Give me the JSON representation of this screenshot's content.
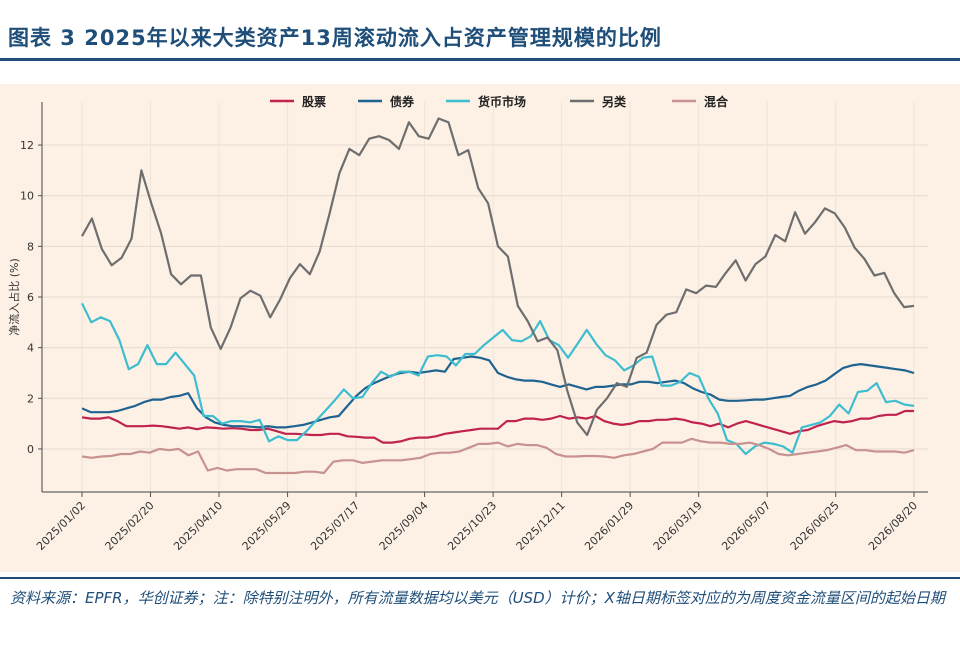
{
  "title": "图表 3 2025年以来大类资产13周滚动流入占资产管理规模的比例",
  "source": "资料来源：EPFR，华创证券；注：除特别注明外，所有流量数据均以美元（USD）计价；X轴日期标签对应的为周度资金流量区间的起始日期",
  "chart_data": {
    "type": "line",
    "ylabel": "净流入占比 (%)",
    "ylim": [
      -1.7,
      13.7
    ],
    "yticks": [
      0,
      2,
      4,
      6,
      8,
      10,
      12
    ],
    "xticks": [
      "2025/01/02",
      "2025/02/20",
      "2025/04/10",
      "2025/05/29",
      "2025/07/17",
      "2025/09/04",
      "2025/10/23",
      "2025/12/11",
      "2026/01/29",
      "2026/03/19",
      "2026/05/07",
      "2026/06/25",
      "2026/08/20"
    ],
    "x_start": "2025/01/02",
    "x_end": "2026/08/20",
    "grid": true,
    "legend": "top-center",
    "series": [
      {
        "name": "股票",
        "color": "#c0234d",
        "values": [
          1.25,
          1.2,
          1.2,
          1.25,
          1.1,
          0.9,
          0.9,
          0.9,
          0.92,
          0.9,
          0.85,
          0.8,
          0.85,
          0.78,
          0.85,
          0.83,
          0.8,
          0.82,
          0.8,
          0.75,
          0.75,
          0.8,
          0.7,
          0.6,
          0.6,
          0.58,
          0.55,
          0.55,
          0.6,
          0.6,
          0.5,
          0.48,
          0.45,
          0.45,
          0.25,
          0.25,
          0.3,
          0.4,
          0.45,
          0.45,
          0.5,
          0.6,
          0.65,
          0.7,
          0.75,
          0.8,
          0.8,
          0.8,
          1.1,
          1.1,
          1.2,
          1.2,
          1.15,
          1.2,
          1.3,
          1.2,
          1.25,
          1.2,
          1.3,
          1.1,
          1.0,
          0.95,
          1.0,
          1.1,
          1.1,
          1.15,
          1.15,
          1.2,
          1.15,
          1.05,
          1.0,
          0.9,
          1.0,
          0.85,
          1.0,
          1.1,
          1.0,
          0.9,
          0.8,
          0.7,
          0.6,
          0.7,
          0.75,
          0.9,
          1.0,
          1.1,
          1.05,
          1.1,
          1.2,
          1.2,
          1.3,
          1.35,
          1.35,
          1.5,
          1.5
        ]
      },
      {
        "name": "债券",
        "color": "#1f6391",
        "values": [
          1.6,
          1.45,
          1.45,
          1.45,
          1.5,
          1.6,
          1.7,
          1.85,
          1.95,
          1.95,
          2.05,
          2.1,
          2.2,
          1.6,
          1.25,
          1.05,
          0.95,
          0.9,
          0.9,
          0.88,
          0.85,
          0.9,
          0.85,
          0.85,
          0.9,
          0.95,
          1.05,
          1.15,
          1.25,
          1.3,
          1.7,
          2.1,
          2.4,
          2.6,
          2.75,
          2.9,
          3.0,
          3.05,
          3.0,
          3.05,
          3.1,
          3.05,
          3.55,
          3.6,
          3.65,
          3.6,
          3.5,
          3.0,
          2.85,
          2.75,
          2.7,
          2.7,
          2.65,
          2.55,
          2.45,
          2.55,
          2.45,
          2.35,
          2.45,
          2.45,
          2.5,
          2.55,
          2.55,
          2.65,
          2.65,
          2.6,
          2.65,
          2.7,
          2.6,
          2.4,
          2.25,
          2.15,
          1.95,
          1.9,
          1.9,
          1.92,
          1.95,
          1.95,
          2.0,
          2.05,
          2.1,
          2.3,
          2.45,
          2.55,
          2.7,
          2.95,
          3.2,
          3.3,
          3.35,
          3.3,
          3.25,
          3.2,
          3.15,
          3.1,
          3.0
        ]
      },
      {
        "name": "货币市场",
        "color": "#3dbdd0",
        "values": [
          5.75,
          5.0,
          5.2,
          5.05,
          4.3,
          3.15,
          3.35,
          4.1,
          3.35,
          3.35,
          3.8,
          3.35,
          2.9,
          1.3,
          1.3,
          1.0,
          1.1,
          1.1,
          1.05,
          1.15,
          0.3,
          0.5,
          0.35,
          0.35,
          0.7,
          1.1,
          1.5,
          1.9,
          2.35,
          2.0,
          2.05,
          2.6,
          3.05,
          2.85,
          3.05,
          3.05,
          2.9,
          3.65,
          3.7,
          3.65,
          3.3,
          3.75,
          3.75,
          4.1,
          4.4,
          4.7,
          4.3,
          4.25,
          4.45,
          5.05,
          4.3,
          4.1,
          3.6,
          4.15,
          4.7,
          4.15,
          3.7,
          3.5,
          3.1,
          3.3,
          3.6,
          3.65,
          2.5,
          2.5,
          2.65,
          3.0,
          2.85,
          2.0,
          1.4,
          0.35,
          0.2,
          -0.2,
          0.1,
          0.25,
          0.2,
          0.1,
          -0.15,
          0.85,
          0.95,
          1.05,
          1.3,
          1.75,
          1.4,
          2.25,
          2.3,
          2.6,
          1.85,
          1.9,
          1.75,
          1.7
        ]
      },
      {
        "name": "另类",
        "color": "#6e6e6e",
        "values": [
          8.4,
          9.1,
          7.9,
          7.25,
          7.55,
          8.3,
          11.0,
          9.7,
          8.5,
          6.9,
          6.5,
          6.85,
          6.85,
          4.8,
          3.95,
          4.8,
          5.95,
          6.25,
          6.05,
          5.2,
          5.9,
          6.75,
          7.3,
          6.9,
          7.8,
          9.3,
          10.9,
          11.85,
          11.6,
          12.25,
          12.35,
          12.2,
          11.85,
          12.9,
          12.35,
          12.25,
          13.05,
          12.9,
          11.6,
          11.8,
          10.3,
          9.7,
          8.0,
          7.6,
          5.65,
          5.05,
          4.25,
          4.4,
          3.9,
          2.3,
          1.05,
          0.55,
          1.55,
          2.0,
          2.6,
          2.45,
          3.6,
          3.8,
          4.9,
          5.3,
          5.4,
          6.3,
          6.15,
          6.45,
          6.4,
          6.95,
          7.45,
          6.65,
          7.3,
          7.6,
          8.45,
          8.2,
          9.35,
          8.5,
          8.95,
          9.5,
          9.3,
          8.75,
          7.95,
          7.5,
          6.85,
          6.95,
          6.15,
          5.6,
          5.65
        ]
      },
      {
        "name": "混合",
        "color": "#c8928e",
        "values": [
          -0.3,
          -0.35,
          -0.3,
          -0.28,
          -0.2,
          -0.2,
          -0.1,
          -0.15,
          0.0,
          -0.05,
          0.0,
          -0.25,
          -0.1,
          -0.85,
          -0.75,
          -0.85,
          -0.8,
          -0.8,
          -0.8,
          -0.95,
          -0.95,
          -0.95,
          -0.95,
          -0.9,
          -0.9,
          -0.95,
          -0.5,
          -0.45,
          -0.45,
          -0.55,
          -0.5,
          -0.45,
          -0.45,
          -0.45,
          -0.4,
          -0.35,
          -0.2,
          -0.15,
          -0.15,
          -0.1,
          0.05,
          0.2,
          0.2,
          0.25,
          0.1,
          0.2,
          0.15,
          0.15,
          0.05,
          -0.2,
          -0.3,
          -0.3,
          -0.28,
          -0.28,
          -0.3,
          -0.35,
          -0.25,
          -0.2,
          -0.1,
          0.0,
          0.25,
          0.25,
          0.25,
          0.4,
          0.3,
          0.25,
          0.25,
          0.2,
          0.2,
          0.25,
          0.15,
          0.0,
          -0.2,
          -0.25,
          -0.2,
          -0.15,
          -0.1,
          -0.05,
          0.05,
          0.15,
          -0.05,
          -0.05,
          -0.1,
          -0.1,
          -0.1,
          -0.15,
          -0.05
        ]
      }
    ]
  }
}
